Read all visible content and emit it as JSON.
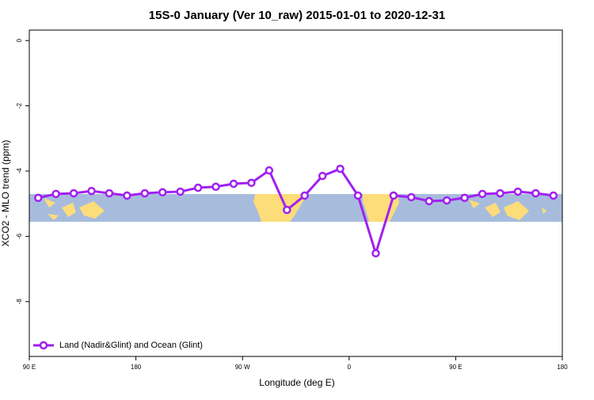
{
  "chart_data": {
    "type": "line",
    "title": "15S-0 January (Ver 10_raw)   2015-01-01 to 2020-12-31",
    "xlabel": "Longitude (deg E)",
    "ylabel": "XCO2 - MLO trend (ppm)",
    "x": [
      97.5,
      112.5,
      127.5,
      142.5,
      157.5,
      172.5,
      187.5,
      202.5,
      217.5,
      232.5,
      247.5,
      262.5,
      277.5,
      292.5,
      307.5,
      322.5,
      337.5,
      352.5,
      367.5,
      382.5,
      397.5,
      412.5,
      427.5,
      442.5,
      457.5,
      472.5,
      487.5,
      502.5,
      517.5,
      532.5
    ],
    "series": [
      {
        "name": "Land (Nadir&Glint) and Ocean (Glint)",
        "color": "#a020f0",
        "values": [
          -4.82,
          -4.7,
          -4.68,
          -4.61,
          -4.68,
          -4.75,
          -4.68,
          -4.65,
          -4.63,
          -4.51,
          -4.48,
          -4.39,
          -4.36,
          -3.98,
          -5.19,
          -4.75,
          -4.15,
          -3.93,
          -4.75,
          -6.52,
          -4.75,
          -4.8,
          -4.92,
          -4.9,
          -4.82,
          -4.7,
          -4.68,
          -4.63,
          -4.68,
          -4.75
        ]
      }
    ],
    "xlim": [
      90,
      540
    ],
    "xticks": [
      {
        "value": 90,
        "label": "90 E"
      },
      180,
      {
        "value": 270,
        "label": "90 W"
      },
      {
        "value": 360,
        "label": "0"
      },
      {
        "value": 450,
        "label": "90 E"
      },
      {
        "value": 540,
        "label": "180"
      }
    ],
    "ylim": [
      -9.68,
      0.32
    ],
    "yticks": [
      0,
      -2,
      -4,
      -6,
      -8
    ],
    "legend": "bottom-left"
  }
}
